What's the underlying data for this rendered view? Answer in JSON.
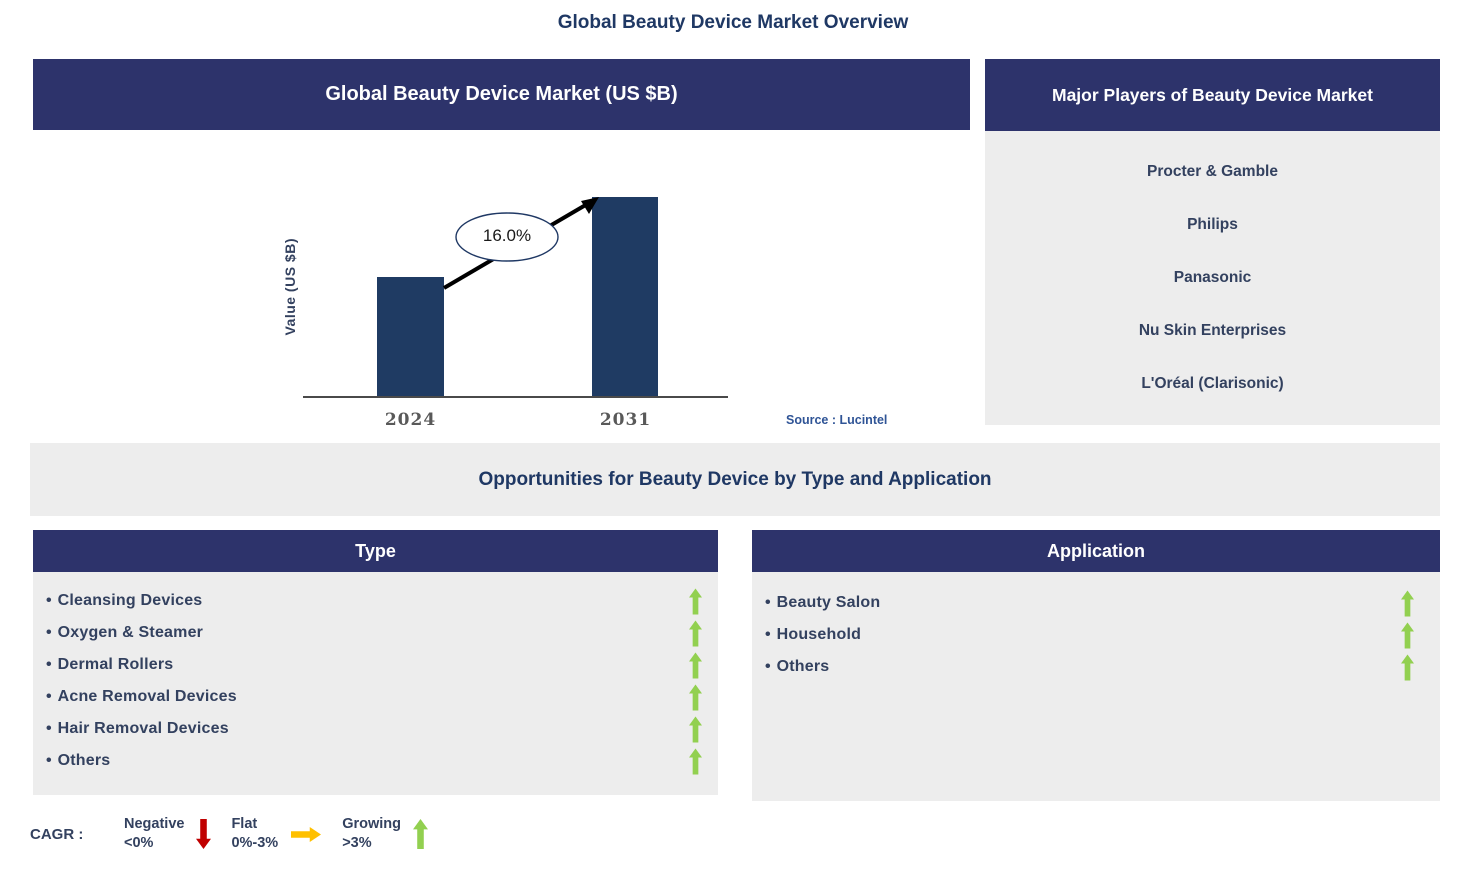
{
  "page_title": "Global Beauty Device Market Overview",
  "colors": {
    "band_navy": "#2D336B",
    "bar_navy": "#1F3B63",
    "title_blue": "#1F3864",
    "panel_gray": "#EDEDED",
    "item_text": "#33415F",
    "source_blue": "#2F5496",
    "trend_growing": "#92D050",
    "trend_flat": "#FFC000",
    "trend_negative": "#C00000"
  },
  "chart_data": {
    "type": "bar",
    "title": "Global Beauty Device Market (US $B)",
    "categories": [
      "2024",
      "2031"
    ],
    "values_relative": [
      0.6,
      1.0
    ],
    "value_labels_shown": false,
    "ylabel": "Value (US $B)",
    "xlabel": "",
    "annotation_text": "16.0%",
    "bar_color": "#1F3B63",
    "grid": false,
    "legend_position": "none",
    "source": "Source : Lucintel"
  },
  "market_panel": {
    "header": "Global Beauty Device Market (US $B)",
    "ylabel": "Value (US $B)",
    "cagr_bubble": "16.0%",
    "source": "Source : Lucintel"
  },
  "major_players": {
    "header": "Major Players of Beauty Device Market",
    "companies": [
      "Procter & Gamble",
      "Philips",
      "Panasonic",
      "Nu Skin Enterprises",
      "L'Oréal (Clarisonic)"
    ]
  },
  "opportunities": {
    "banner": "Opportunities for Beauty Device by Type and Application",
    "type_panel": {
      "header": "Type",
      "items": [
        {
          "label": "Cleansing Devices",
          "trend": "growing"
        },
        {
          "label": "Oxygen & Steamer",
          "trend": "growing"
        },
        {
          "label": "Dermal Rollers",
          "trend": "growing"
        },
        {
          "label": "Acne Removal Devices",
          "trend": "growing"
        },
        {
          "label": "Hair Removal Devices",
          "trend": "growing"
        },
        {
          "label": "Others",
          "trend": "growing"
        }
      ]
    },
    "application_panel": {
      "header": "Application",
      "items": [
        {
          "label": "Beauty Salon",
          "trend": "growing"
        },
        {
          "label": "Household",
          "trend": "growing"
        },
        {
          "label": "Others",
          "trend": "growing"
        }
      ]
    }
  },
  "legend": {
    "prefix": "CAGR :",
    "entries": [
      {
        "label": "Negative",
        "range": "<0%",
        "arrow": "down",
        "color": "#C00000"
      },
      {
        "label": "Flat",
        "range": "0%-3%",
        "arrow": "right",
        "color": "#FFC000"
      },
      {
        "label": "Growing",
        "range": ">3%",
        "arrow": "up",
        "color": "#92D050"
      }
    ]
  }
}
